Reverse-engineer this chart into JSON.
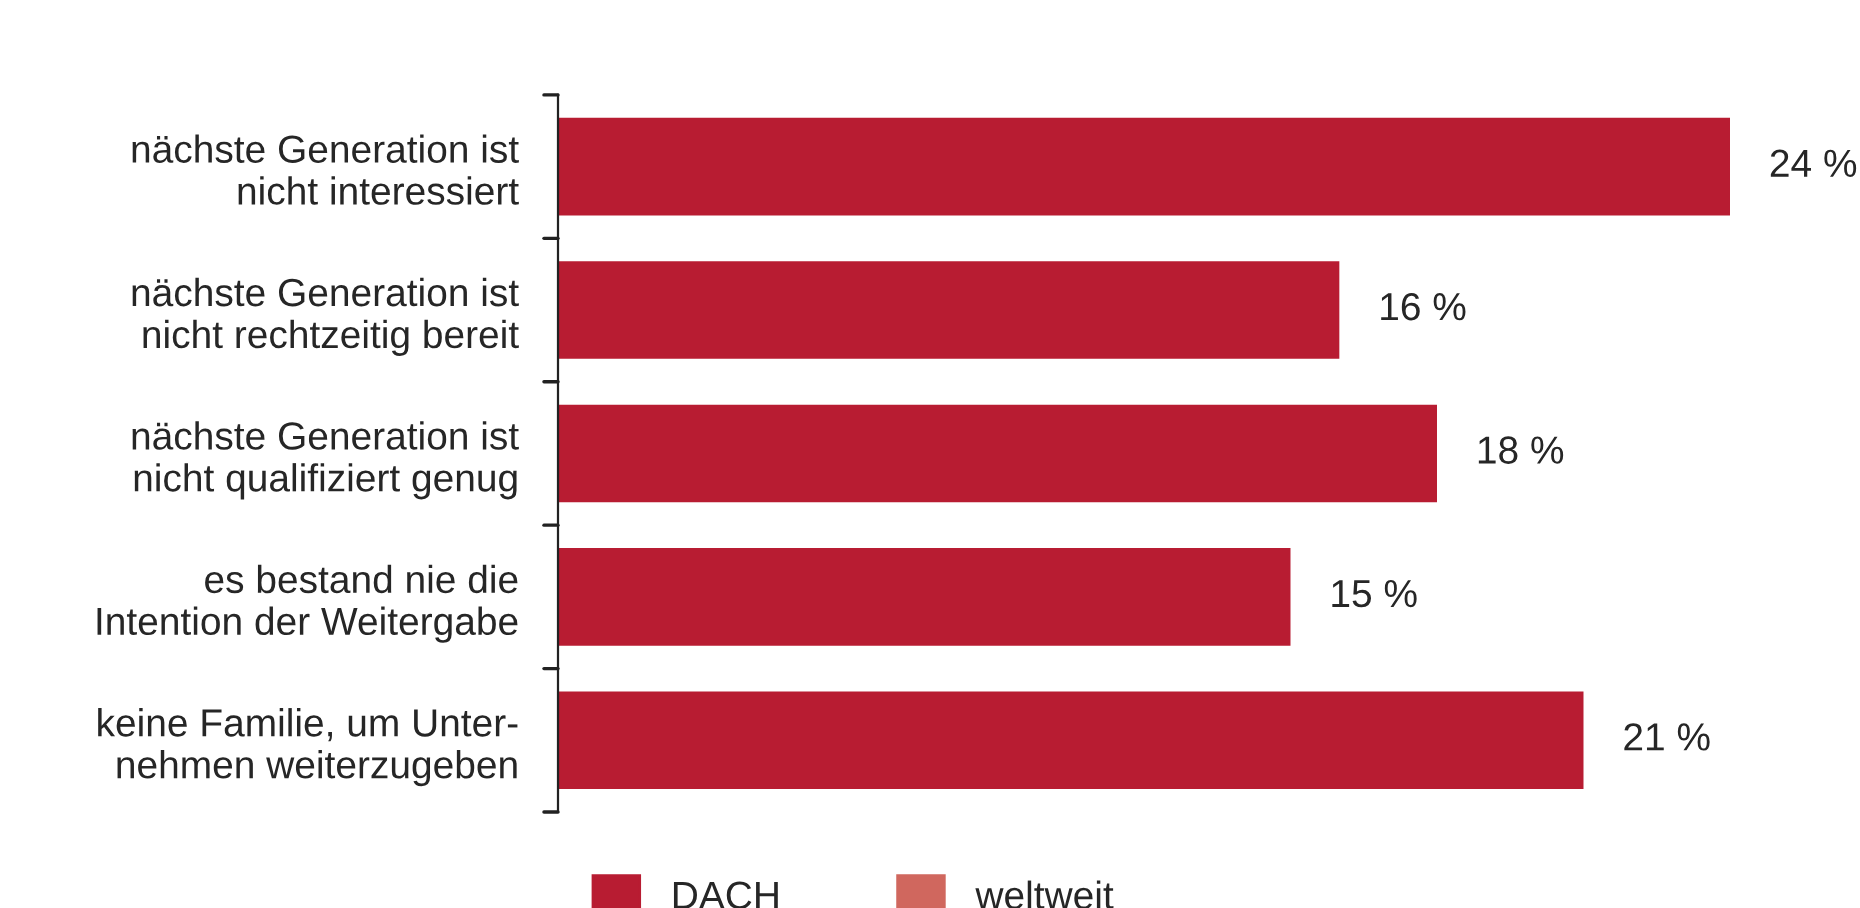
{
  "chart_data": {
    "type": "bar",
    "orientation": "horizontal",
    "categories": [
      "nächste Generation ist\nnicht interessiert",
      "nächste Generation ist\nnicht rechtzeitig bereit",
      "nächste Generation ist\nnicht qualifiziert genug",
      "es bestand nie die\nIntention der Weitergabe",
      "keine Familie, um Unter-\nnehmen weiterzugeben"
    ],
    "series": [
      {
        "name": "DACH",
        "color": "#b81c32",
        "values": [
          24,
          16,
          18,
          15,
          21
        ],
        "value_labels": [
          "24 %",
          "16 %",
          "18 %",
          "15 %",
          "21 %"
        ]
      },
      {
        "name": "weltweit",
        "color": "#d0675e",
        "values": [
          null,
          null,
          null,
          null,
          null
        ]
      }
    ],
    "legend": "bottom",
    "grid": false
  }
}
